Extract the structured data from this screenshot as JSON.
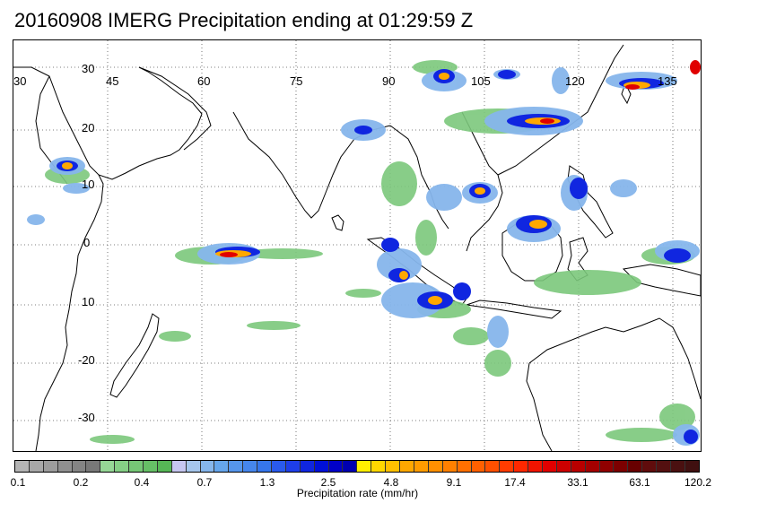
{
  "title": "20160908 IMERG Precipitation ending at 01:29:59 Z",
  "map": {
    "type": "precipitation-map",
    "region": "Indian Ocean / Maritime Continent",
    "lon_labels": [
      "30",
      "45",
      "60",
      "75",
      "90",
      "105",
      "120",
      "135"
    ],
    "lat_labels": [
      "30",
      "20",
      "10",
      "0",
      "10",
      "-20",
      "-30"
    ],
    "grid": true,
    "coastline_color": "#000000"
  },
  "colorbar": {
    "title": "Precipitation rate (mm/hr)",
    "tick_labels": [
      "0.1",
      "0.2",
      "0.4",
      "0.7",
      "1.3",
      "2.5",
      "4.8",
      "9.1",
      "17.4",
      "33.1",
      "63.1",
      "120.2"
    ],
    "colors": [
      "#b4b4b4",
      "#a8a8a8",
      "#9c9c9c",
      "#909090",
      "#848484",
      "#787878",
      "#96d796",
      "#86cf86",
      "#76c776",
      "#66bf66",
      "#56b756",
      "#c6c6f0",
      "#a6c6ec",
      "#86b6ec",
      "#66a6ec",
      "#5696ec",
      "#4686ec",
      "#3676ec",
      "#2a5aec",
      "#1e3ee8",
      "#1026e0",
      "#0010d8",
      "#0000c8",
      "#0000b0",
      "#fff000",
      "#ffd800",
      "#ffc000",
      "#ffa800",
      "#ff9c00",
      "#ff9000",
      "#ff8000",
      "#ff7000",
      "#ff6000",
      "#ff5000",
      "#ff3c00",
      "#ff2800",
      "#f01400",
      "#e00000",
      "#cc0000",
      "#b80000",
      "#a40000",
      "#900000",
      "#7c0000",
      "#680000",
      "#600c0c",
      "#541010",
      "#4a1010",
      "#401010"
    ]
  }
}
